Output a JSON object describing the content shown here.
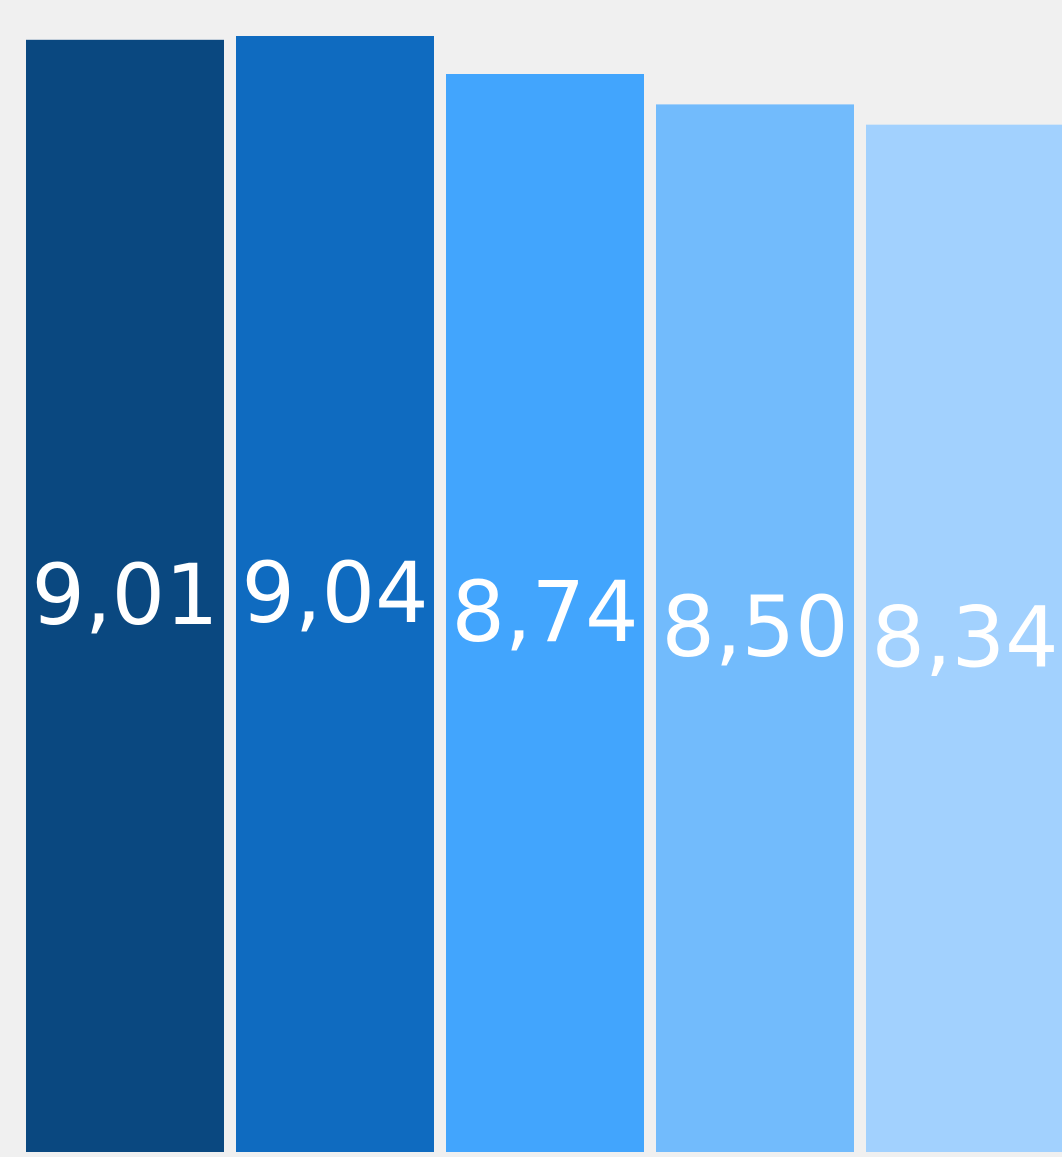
{
  "chart_data": {
    "type": "bar",
    "categories": [
      "",
      "",
      "",
      "",
      ""
    ],
    "values": [
      9.01,
      9.04,
      8.74,
      8.5,
      8.34
    ],
    "data_labels": [
      "9,01",
      "9,04",
      "8,74",
      "8,50",
      "8,34"
    ],
    "colors": [
      "#0a4880",
      "#0f6bc0",
      "#42a5fd",
      "#72bbfc",
      "#a2d1fe"
    ],
    "title": "",
    "xlabel": "",
    "ylabel": "",
    "grid": false,
    "legend": "none"
  }
}
